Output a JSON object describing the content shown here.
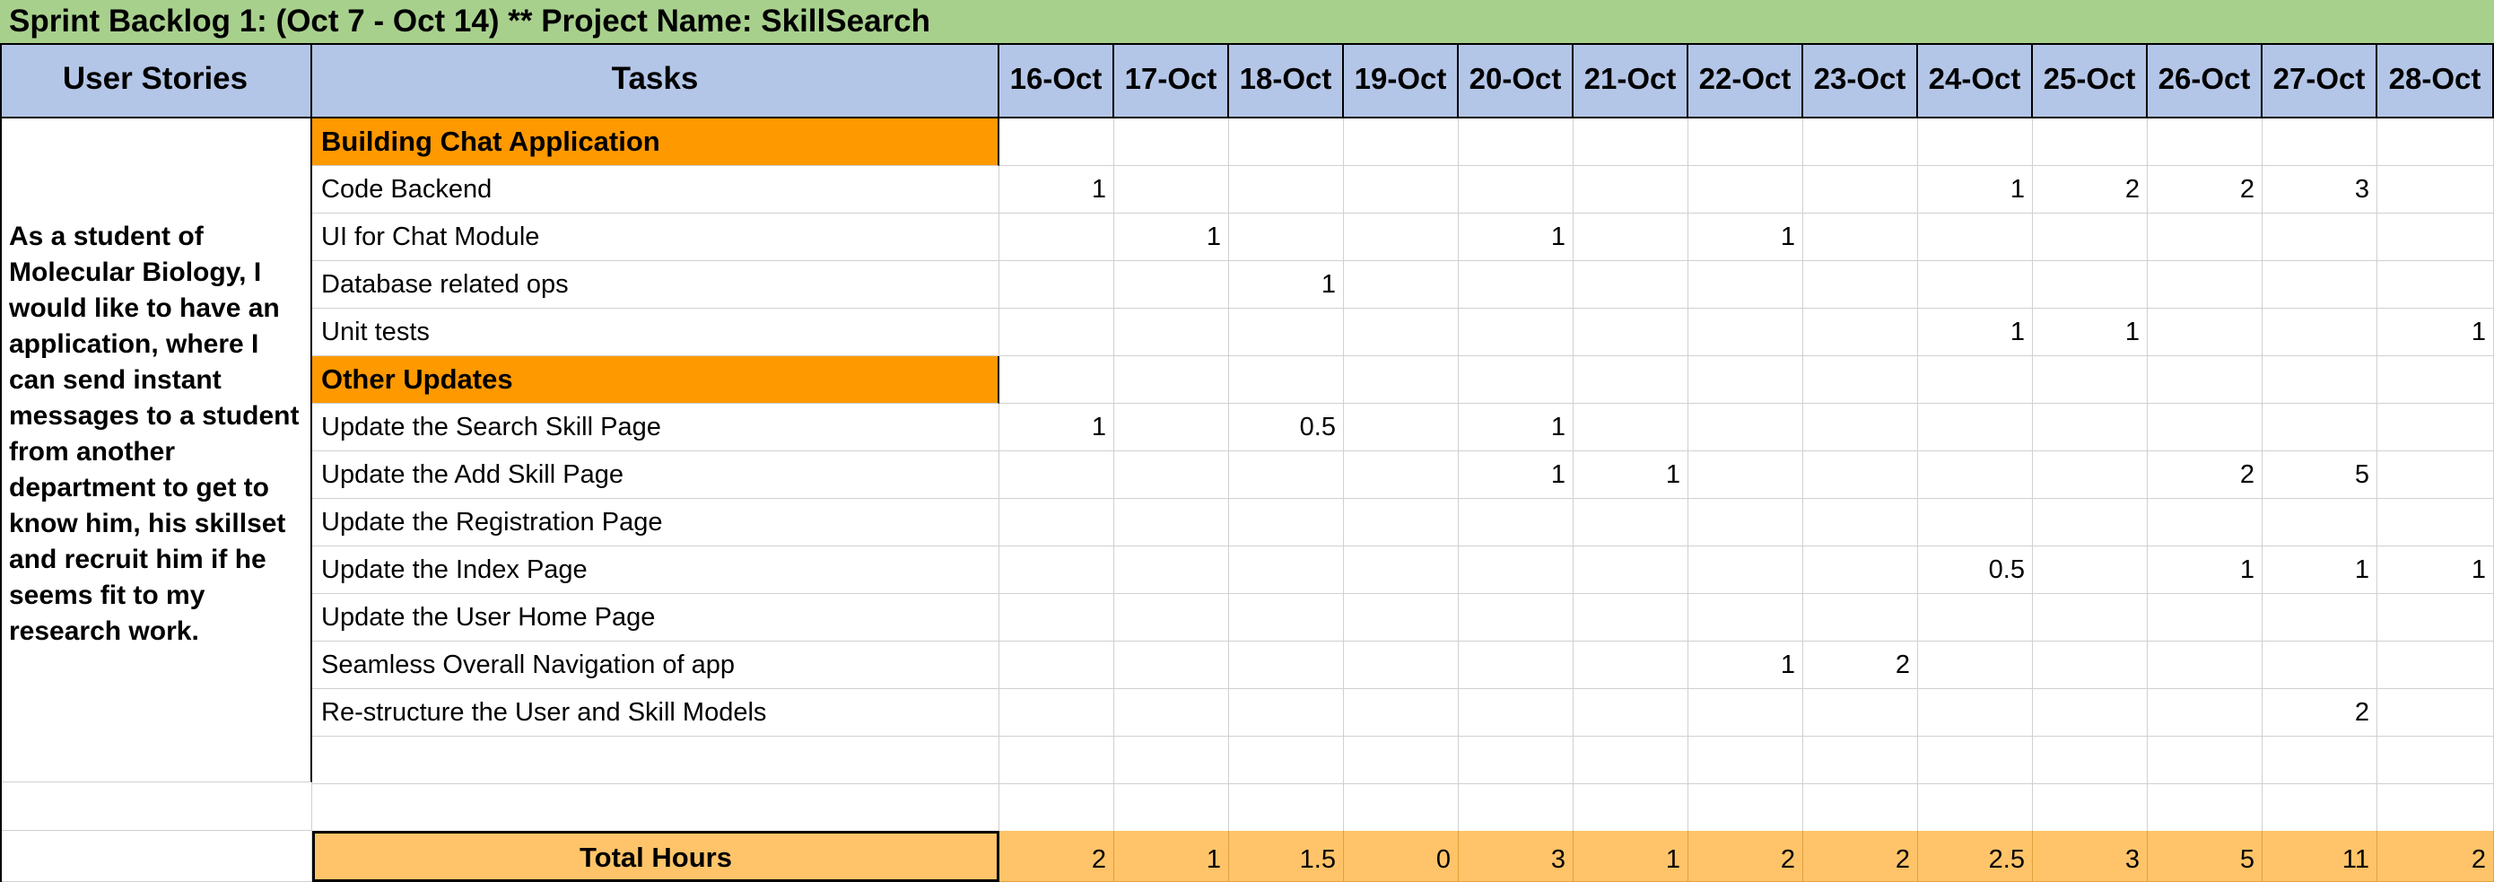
{
  "title": "Sprint Backlog 1: (Oct 7 - Oct 14)  ** Project Name: SkillSearch",
  "headers": {
    "user_stories": "User Stories",
    "tasks": "Tasks",
    "dates": [
      "16-Oct",
      "17-Oct",
      "18-Oct",
      "19-Oct",
      "20-Oct",
      "21-Oct",
      "22-Oct",
      "23-Oct",
      "24-Oct",
      "25-Oct",
      "26-Oct",
      "27-Oct",
      "28-Oct"
    ]
  },
  "user_story": "As a student of Molecular Biology, I would like to have an application, where I can send instant messages to a student from another department to get to know him, his skillset and recruit him if he seems fit to my research work.",
  "rows": [
    {
      "type": "section",
      "label": "Building Chat Application",
      "values": [
        "",
        "",
        "",
        "",
        "",
        "",
        "",
        "",
        "",
        "",
        "",
        "",
        ""
      ]
    },
    {
      "type": "task",
      "label": "Code Backend",
      "values": [
        "1",
        "",
        "",
        "",
        "",
        "",
        "",
        "",
        "1",
        "2",
        "2",
        "3",
        ""
      ]
    },
    {
      "type": "task",
      "label": "UI for Chat Module",
      "values": [
        "",
        "1",
        "",
        "",
        "1",
        "",
        "1",
        "",
        "",
        "",
        "",
        "",
        ""
      ]
    },
    {
      "type": "task",
      "label": "Database related ops",
      "values": [
        "",
        "",
        "1",
        "",
        "",
        "",
        "",
        "",
        "",
        "",
        "",
        "",
        ""
      ]
    },
    {
      "type": "task",
      "label": "Unit tests",
      "values": [
        "",
        "",
        "",
        "",
        "",
        "",
        "",
        "",
        "1",
        "1",
        "",
        "",
        "1"
      ]
    },
    {
      "type": "section",
      "label": "Other Updates",
      "values": [
        "",
        "",
        "",
        "",
        "",
        "",
        "",
        "",
        "",
        "",
        "",
        "",
        ""
      ]
    },
    {
      "type": "task",
      "label": "Update the Search Skill Page",
      "values": [
        "1",
        "",
        "0.5",
        "",
        "1",
        "",
        "",
        "",
        "",
        "",
        "",
        "",
        ""
      ]
    },
    {
      "type": "task",
      "label": "Update the Add Skill Page",
      "values": [
        "",
        "",
        "",
        "",
        "1",
        "1",
        "",
        "",
        "",
        "",
        "2",
        "5",
        ""
      ]
    },
    {
      "type": "task",
      "label": "Update the Registration Page",
      "values": [
        "",
        "",
        "",
        "",
        "",
        "",
        "",
        "",
        "",
        "",
        "",
        "",
        ""
      ]
    },
    {
      "type": "task",
      "label": "Update the Index Page",
      "values": [
        "",
        "",
        "",
        "",
        "",
        "",
        "",
        "",
        "0.5",
        "",
        "1",
        "1",
        "1"
      ]
    },
    {
      "type": "task",
      "label": "Update the User Home Page",
      "values": [
        "",
        "",
        "",
        "",
        "",
        "",
        "",
        "",
        "",
        "",
        "",
        "",
        ""
      ]
    },
    {
      "type": "task",
      "label": "Seamless Overall Navigation of app",
      "values": [
        "",
        "",
        "",
        "",
        "",
        "",
        "1",
        "2",
        "",
        "",
        "",
        "",
        ""
      ]
    },
    {
      "type": "task",
      "label": "Re-structure the User and Skill Models",
      "values": [
        "",
        "",
        "",
        "",
        "",
        "",
        "",
        "",
        "",
        "",
        "",
        "2",
        ""
      ]
    },
    {
      "type": "task",
      "label": "",
      "values": [
        "",
        "",
        "",
        "",
        "",
        "",
        "",
        "",
        "",
        "",
        "",
        "",
        ""
      ]
    },
    {
      "type": "task",
      "label": "",
      "values": [
        "",
        "",
        "",
        "",
        "",
        "",
        "",
        "",
        "",
        "",
        "",
        "",
        ""
      ]
    }
  ],
  "total": {
    "label": "Total Hours",
    "values": [
      "2",
      "1",
      "1.5",
      "0",
      "3",
      "1",
      "2",
      "2",
      "2.5",
      "3",
      "5",
      "11",
      "2"
    ]
  }
}
